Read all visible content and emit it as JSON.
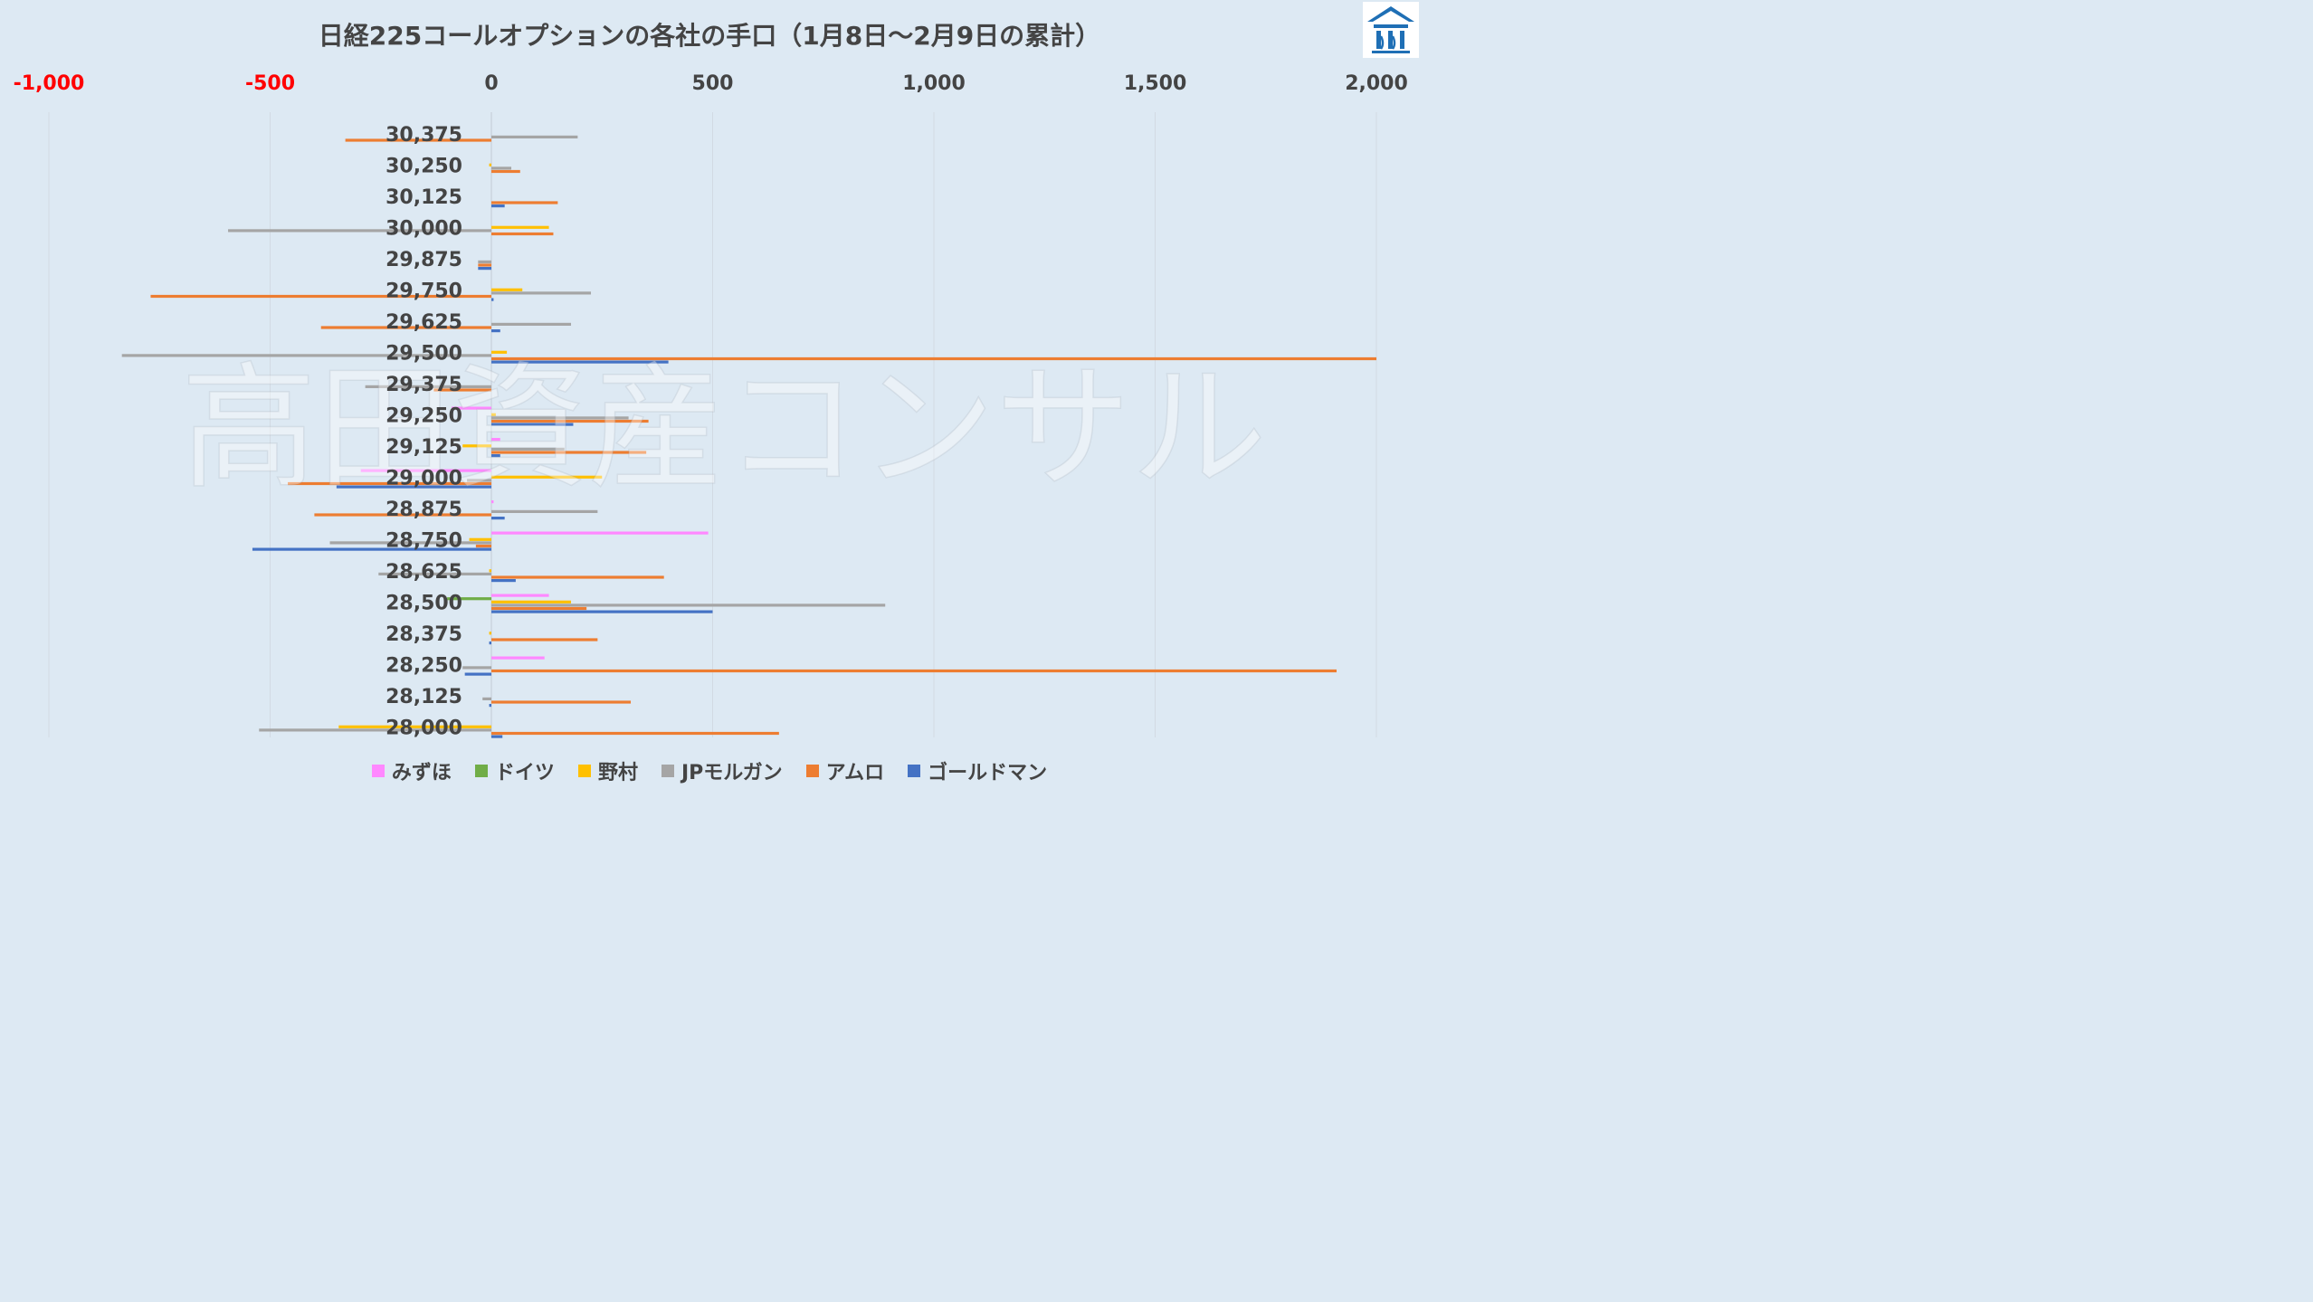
{
  "chart_data": {
    "type": "bar",
    "orientation": "horizontal",
    "title": "日経225コールオプションの各社の手口（1月8日～2月9日の累計）",
    "watermark": "高田資産コンサル",
    "xlim": [
      -1000,
      2000
    ],
    "x_ticks": [
      {
        "value": -1000,
        "label": "-1,000",
        "color": "#ff0000"
      },
      {
        "value": -500,
        "label": "-500",
        "color": "#ff0000"
      },
      {
        "value": 0,
        "label": "0",
        "color": "#444444"
      },
      {
        "value": 500,
        "label": "500",
        "color": "#444444"
      },
      {
        "value": 1000,
        "label": "1,000",
        "color": "#444444"
      },
      {
        "value": 1500,
        "label": "1,500",
        "color": "#444444"
      },
      {
        "value": 2000,
        "label": "2,000",
        "color": "#444444"
      }
    ],
    "grid": true,
    "legend_position": "bottom",
    "categories": [
      "30,375",
      "30,250",
      "30,125",
      "30,000",
      "29,875",
      "29,750",
      "29,625",
      "29,500",
      "29,375",
      "29,250",
      "29,125",
      "29,000",
      "28,875",
      "28,750",
      "28,625",
      "28,500",
      "28,375",
      "28,250",
      "28,125",
      "28,000"
    ],
    "series": [
      {
        "name": "みずほ",
        "color": "#ff88ff",
        "values": [
          0,
          0,
          0,
          0,
          0,
          0,
          0,
          0,
          0,
          -90,
          20,
          -295,
          5,
          490,
          0,
          130,
          0,
          120,
          0,
          0
        ]
      },
      {
        "name": "ドイツ",
        "color": "#70ad47",
        "values": [
          0,
          0,
          0,
          0,
          0,
          0,
          0,
          0,
          0,
          0,
          0,
          0,
          0,
          0,
          0,
          -100,
          0,
          0,
          0,
          0
        ]
      },
      {
        "name": "野村",
        "color": "#ffc000",
        "values": [
          0,
          -5,
          0,
          130,
          0,
          70,
          0,
          35,
          0,
          10,
          -65,
          250,
          0,
          -50,
          -5,
          180,
          -5,
          0,
          0,
          -345
        ]
      },
      {
        "name": "JPモルガン",
        "color": "#a5a5a5",
        "values": [
          195,
          45,
          0,
          -595,
          -30,
          225,
          180,
          -835,
          -285,
          310,
          165,
          -55,
          240,
          -365,
          -255,
          890,
          0,
          -65,
          -20,
          -525
        ]
      },
      {
        "name": "アムロ",
        "color": "#ed7d31",
        "values": [
          -330,
          65,
          150,
          140,
          -30,
          -770,
          -385,
          2000,
          -130,
          355,
          350,
          -460,
          -400,
          -35,
          390,
          215,
          240,
          1910,
          315,
          650
        ]
      },
      {
        "name": "ゴールドマン",
        "color": "#4472c4",
        "values": [
          0,
          0,
          30,
          0,
          -30,
          5,
          20,
          400,
          0,
          185,
          20,
          -350,
          30,
          -540,
          55,
          500,
          -5,
          -60,
          -5,
          25
        ]
      }
    ]
  }
}
